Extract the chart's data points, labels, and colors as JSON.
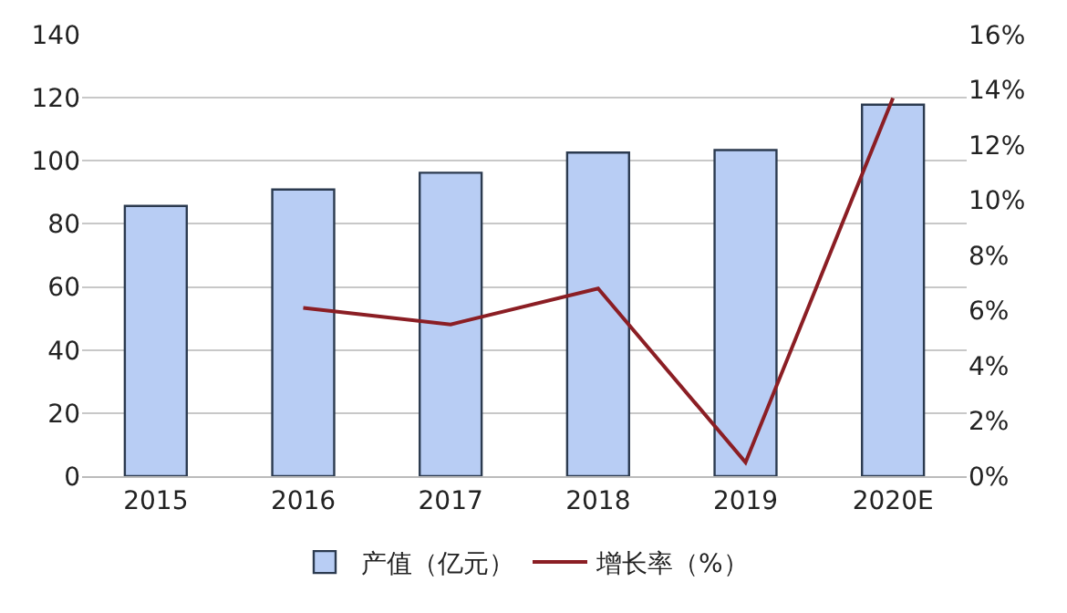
{
  "chart_data": {
    "type": "bar",
    "categories": [
      "2015",
      "2016",
      "2017",
      "2018",
      "2019",
      "2020E"
    ],
    "series": [
      {
        "name": "产值（亿元）",
        "color": "#b8cdf4",
        "values": [
          85.7,
          90.9,
          96.2,
          102.6,
          103.4,
          117.8
        ]
      },
      {
        "name": "增长率（%）",
        "type": "line",
        "axis": "y2",
        "color": "#8b1e24",
        "values": [
          null,
          6.1,
          5.5,
          6.8,
          0.5,
          13.7
        ]
      }
    ],
    "ylim": [
      0,
      140
    ],
    "yticks": [
      0,
      20,
      40,
      60,
      80,
      100,
      120,
      140
    ],
    "y2lim": [
      0,
      16
    ],
    "y2ticks": [
      {
        "value": 0,
        "label": "0%"
      },
      {
        "value": 2,
        "label": "2%"
      },
      {
        "value": 4,
        "label": "4%"
      },
      {
        "value": 6,
        "label": "6%"
      },
      {
        "value": 8,
        "label": "8%"
      },
      {
        "value": 10,
        "label": "10%"
      },
      {
        "value": 12,
        "label": "12%"
      },
      {
        "value": 14,
        "label": "14%"
      },
      {
        "value": 16,
        "label": "16%"
      }
    ],
    "grid": "y",
    "legend": "bottom",
    "marker": "none",
    "line_style": "solid"
  }
}
